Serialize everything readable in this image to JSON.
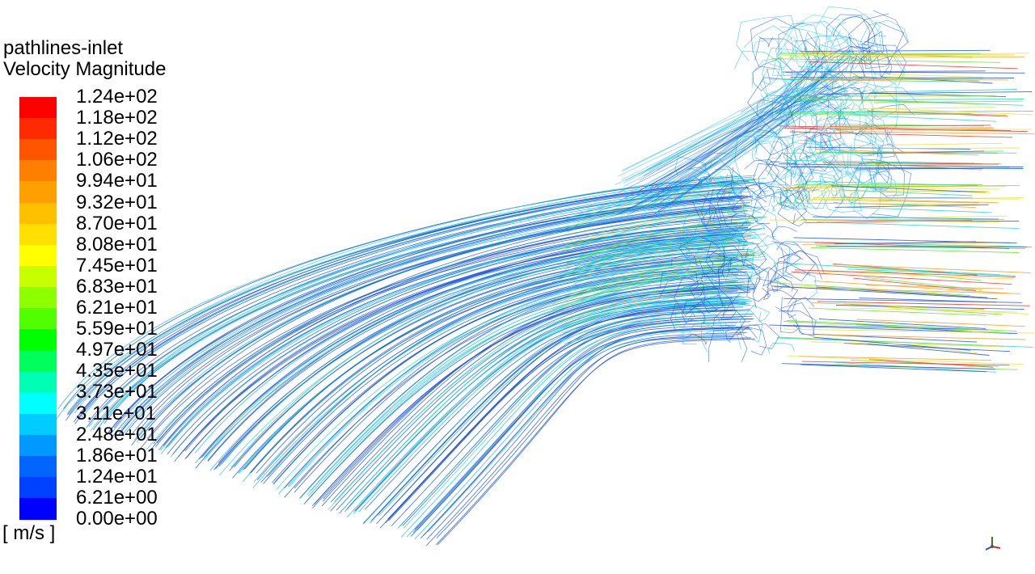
{
  "legend": {
    "title_line1": "pathlines-inlet",
    "title_line2": "Velocity Magnitude",
    "units": "[ m/s ]",
    "ticks": [
      "1.24e+02",
      "1.18e+02",
      "1.12e+02",
      "1.06e+02",
      "9.94e+01",
      "9.32e+01",
      "8.70e+01",
      "8.08e+01",
      "7.45e+01",
      "6.83e+01",
      "6.21e+01",
      "5.59e+01",
      "4.97e+01",
      "4.35e+01",
      "3.73e+01",
      "3.11e+01",
      "2.48e+01",
      "1.86e+01",
      "1.24e+01",
      "6.21e+00",
      "0.00e+00"
    ],
    "colors_top_to_bottom": [
      "#ff0000",
      "#ff2a00",
      "#ff5500",
      "#ff7f00",
      "#ffa000",
      "#ffc000",
      "#ffe000",
      "#ffff00",
      "#c8ff00",
      "#8cff00",
      "#50ff00",
      "#00ff00",
      "#00ff5a",
      "#00ffb4",
      "#00ffff",
      "#00ccff",
      "#0099ff",
      "#0066ff",
      "#0040ff",
      "#0000ff"
    ]
  },
  "scene": {
    "pathline_colors": {
      "slow": "#1f55d8",
      "mid": "#19b5e8",
      "teal": "#2ed6c4",
      "green": "#6edc3a",
      "yellow": "#e6e23a",
      "orange": "#f0a020",
      "red": "#e23a2a"
    }
  },
  "orientation_triad": {
    "icon": "axis-triad-icon"
  }
}
